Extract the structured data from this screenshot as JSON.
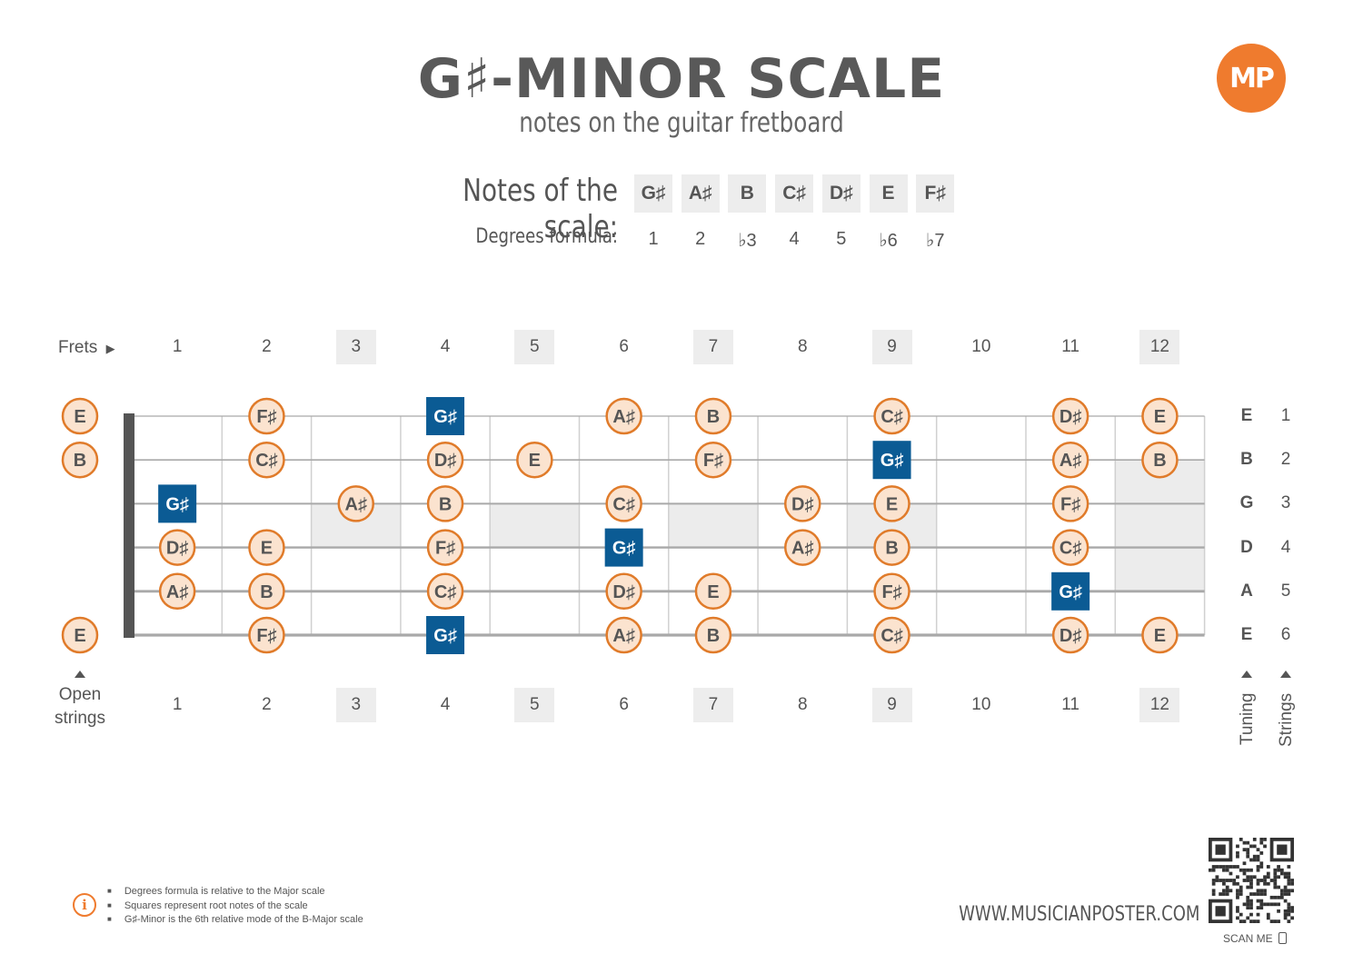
{
  "header": {
    "title": "G♯-MINOR SCALE",
    "subtitle": "notes on the guitar fretboard",
    "logo": "MP"
  },
  "scale": {
    "notes_label": "Notes of the scale:",
    "degrees_label": "Degrees formula:",
    "notes": [
      "G♯",
      "A♯",
      "B",
      "C♯",
      "D♯",
      "E",
      "F♯"
    ],
    "degrees": [
      "1",
      "2",
      "♭3",
      "4",
      "5",
      "♭6",
      "♭7"
    ]
  },
  "fretboard": {
    "frets_label": "Frets",
    "fret_numbers": [
      "1",
      "2",
      "3",
      "4",
      "5",
      "6",
      "7",
      "8",
      "9",
      "10",
      "11",
      "12"
    ],
    "marked_frets": [
      3,
      5,
      7,
      9,
      12
    ],
    "open_strings_label_1": "Open",
    "open_strings_label_2": "strings",
    "tuning_label": "Tuning",
    "strings_label": "Strings",
    "tuning": [
      "E",
      "B",
      "G",
      "D",
      "A",
      "E"
    ],
    "string_numbers": [
      "1",
      "2",
      "3",
      "4",
      "5",
      "6"
    ],
    "root": "G♯",
    "positions": [
      {
        "string": 1,
        "fret": 0,
        "note": "E"
      },
      {
        "string": 1,
        "fret": 2,
        "note": "F♯"
      },
      {
        "string": 1,
        "fret": 4,
        "note": "G♯"
      },
      {
        "string": 1,
        "fret": 6,
        "note": "A♯"
      },
      {
        "string": 1,
        "fret": 7,
        "note": "B"
      },
      {
        "string": 1,
        "fret": 9,
        "note": "C♯"
      },
      {
        "string": 1,
        "fret": 11,
        "note": "D♯"
      },
      {
        "string": 1,
        "fret": 12,
        "note": "E"
      },
      {
        "string": 2,
        "fret": 0,
        "note": "B"
      },
      {
        "string": 2,
        "fret": 2,
        "note": "C♯"
      },
      {
        "string": 2,
        "fret": 4,
        "note": "D♯"
      },
      {
        "string": 2,
        "fret": 5,
        "note": "E"
      },
      {
        "string": 2,
        "fret": 7,
        "note": "F♯"
      },
      {
        "string": 2,
        "fret": 9,
        "note": "G♯"
      },
      {
        "string": 2,
        "fret": 11,
        "note": "A♯"
      },
      {
        "string": 2,
        "fret": 12,
        "note": "B"
      },
      {
        "string": 3,
        "fret": 1,
        "note": "G♯"
      },
      {
        "string": 3,
        "fret": 3,
        "note": "A♯"
      },
      {
        "string": 3,
        "fret": 4,
        "note": "B"
      },
      {
        "string": 3,
        "fret": 6,
        "note": "C♯"
      },
      {
        "string": 3,
        "fret": 8,
        "note": "D♯"
      },
      {
        "string": 3,
        "fret": 9,
        "note": "E"
      },
      {
        "string": 3,
        "fret": 11,
        "note": "F♯"
      },
      {
        "string": 4,
        "fret": 1,
        "note": "D♯"
      },
      {
        "string": 4,
        "fret": 2,
        "note": "E"
      },
      {
        "string": 4,
        "fret": 4,
        "note": "F♯"
      },
      {
        "string": 4,
        "fret": 6,
        "note": "G♯"
      },
      {
        "string": 4,
        "fret": 8,
        "note": "A♯"
      },
      {
        "string": 4,
        "fret": 9,
        "note": "B"
      },
      {
        "string": 4,
        "fret": 11,
        "note": "C♯"
      },
      {
        "string": 5,
        "fret": 1,
        "note": "A♯"
      },
      {
        "string": 5,
        "fret": 2,
        "note": "B"
      },
      {
        "string": 5,
        "fret": 4,
        "note": "C♯"
      },
      {
        "string": 5,
        "fret": 6,
        "note": "D♯"
      },
      {
        "string": 5,
        "fret": 7,
        "note": "E"
      },
      {
        "string": 5,
        "fret": 9,
        "note": "F♯"
      },
      {
        "string": 5,
        "fret": 11,
        "note": "G♯"
      },
      {
        "string": 6,
        "fret": 0,
        "note": "E"
      },
      {
        "string": 6,
        "fret": 2,
        "note": "F♯"
      },
      {
        "string": 6,
        "fret": 4,
        "note": "G♯"
      },
      {
        "string": 6,
        "fret": 6,
        "note": "A♯"
      },
      {
        "string": 6,
        "fret": 7,
        "note": "B"
      },
      {
        "string": 6,
        "fret": 9,
        "note": "C♯"
      },
      {
        "string": 6,
        "fret": 11,
        "note": "D♯"
      },
      {
        "string": 6,
        "fret": 12,
        "note": "E"
      }
    ]
  },
  "footer": {
    "notes": [
      "Degrees formula is relative to the Major scale",
      "Squares represent root notes of the scale",
      "G♯-Minor is the 6th relative mode of the B-Major scale"
    ],
    "website": "WWW.MUSICIANPOSTER.COM",
    "scan_me": "SCAN ME"
  },
  "colors": {
    "accent_orange": "#e07b2a",
    "note_fill": "#fbe3cf",
    "root_blue": "#0b5b94",
    "marker_gray": "#ededed",
    "text_gray": "#555555"
  },
  "icons": [
    "logo-icon",
    "info-icon",
    "qr-code-icon",
    "phone-icon",
    "play-triangle-icon",
    "up-triangle-icon"
  ]
}
